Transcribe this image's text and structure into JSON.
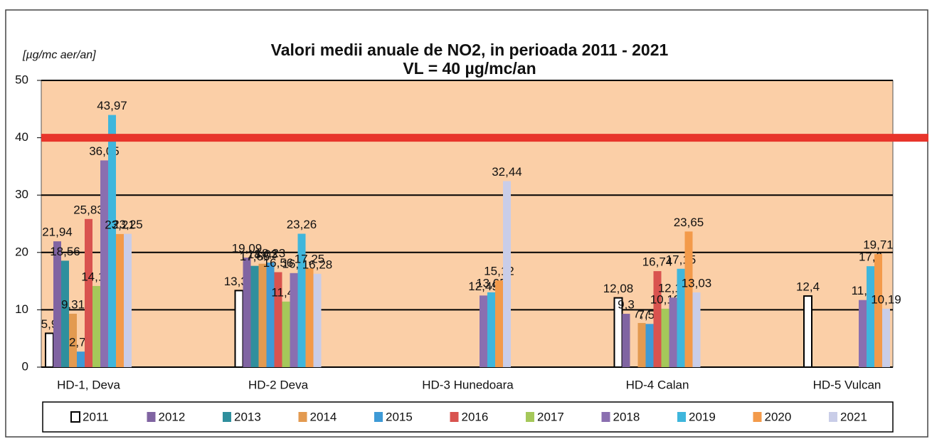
{
  "chart_data": {
    "type": "bar",
    "title": "Valori medii anuale de NO2, in perioada 2011 - 2021",
    "subtitle": "VL = 40 µg/mc/an",
    "y_label": "[µg/mc aer/an]",
    "categories": [
      "HD-1, Deva",
      "HD-2 Deva",
      "HD-3 Hunedoara",
      "HD-4 Calan",
      "HD-5 Vulcan"
    ],
    "ylim": [
      0,
      50
    ],
    "yticks": [
      0,
      10,
      20,
      30,
      40,
      50
    ],
    "grid": true,
    "limit_line": {
      "value": 40,
      "color": "#e8352b"
    },
    "legend": "bottom",
    "series": [
      {
        "name": "2011",
        "color": "#ffffff",
        "values": [
          5.9,
          13.35,
          null,
          12.08,
          12.4
        ],
        "value_labels": [
          "5,9",
          "13,35",
          null,
          "12,08",
          "12,4"
        ]
      },
      {
        "name": "2012",
        "color": "#8064a2",
        "values": [
          21.94,
          19.09,
          null,
          9.3,
          null
        ],
        "value_labels": [
          "21,94",
          "19,09",
          null,
          "9,3",
          null
        ]
      },
      {
        "name": "2013",
        "color": "#2f8f9d",
        "values": [
          18.56,
          17.66,
          null,
          null,
          null
        ],
        "value_labels": [
          "18,56",
          "17,66",
          null,
          null,
          null
        ]
      },
      {
        "name": "2014",
        "color": "#e39a50",
        "values": [
          9.31,
          18.03,
          null,
          7.7,
          null
        ],
        "value_labels": [
          "9,31",
          "18,03",
          null,
          "7,7",
          null
        ]
      },
      {
        "name": "2015",
        "color": "#3e9ad6",
        "values": [
          2.71,
          18.23,
          null,
          7.53,
          null
        ],
        "value_labels": [
          "2,71",
          "18,23",
          null,
          "7,53",
          null
        ]
      },
      {
        "name": "2016",
        "color": "#d9534f",
        "values": [
          25.83,
          16.56,
          null,
          16.74,
          null
        ],
        "value_labels": [
          "25,83",
          "16,56",
          null,
          "16,74",
          null
        ]
      },
      {
        "name": "2017",
        "color": "#a5c85a",
        "values": [
          14.15,
          11.43,
          null,
          10.19,
          null
        ],
        "value_labels": [
          "14,15",
          "11,43",
          null,
          "10,19",
          null
        ]
      },
      {
        "name": "2018",
        "color": "#8a6fb0",
        "values": [
          36.05,
          16.4,
          12.49,
          12.13,
          11.7
        ],
        "value_labels": [
          "36,05",
          "16,4",
          "12,49",
          "12,13",
          "11,7"
        ]
      },
      {
        "name": "2019",
        "color": "#3fb6dc",
        "values": [
          43.97,
          23.26,
          13.05,
          17.15,
          17.6
        ],
        "value_labels": [
          "43,97",
          "23,26",
          "13,05",
          "17,15",
          "17,6"
        ]
      },
      {
        "name": "2020",
        "color": "#f39a4a",
        "values": [
          23.21,
          17.25,
          15.12,
          23.65,
          19.71
        ],
        "value_labels": [
          "23,21",
          "17,25",
          "15,12",
          "23,65",
          "19,71"
        ]
      },
      {
        "name": "2021",
        "color": "#c9cde8",
        "values": [
          23.25,
          16.28,
          32.44,
          13.03,
          10.19
        ],
        "value_labels": [
          "23,25",
          "16,28",
          "32,44",
          "13,03",
          "10,19"
        ]
      }
    ]
  }
}
